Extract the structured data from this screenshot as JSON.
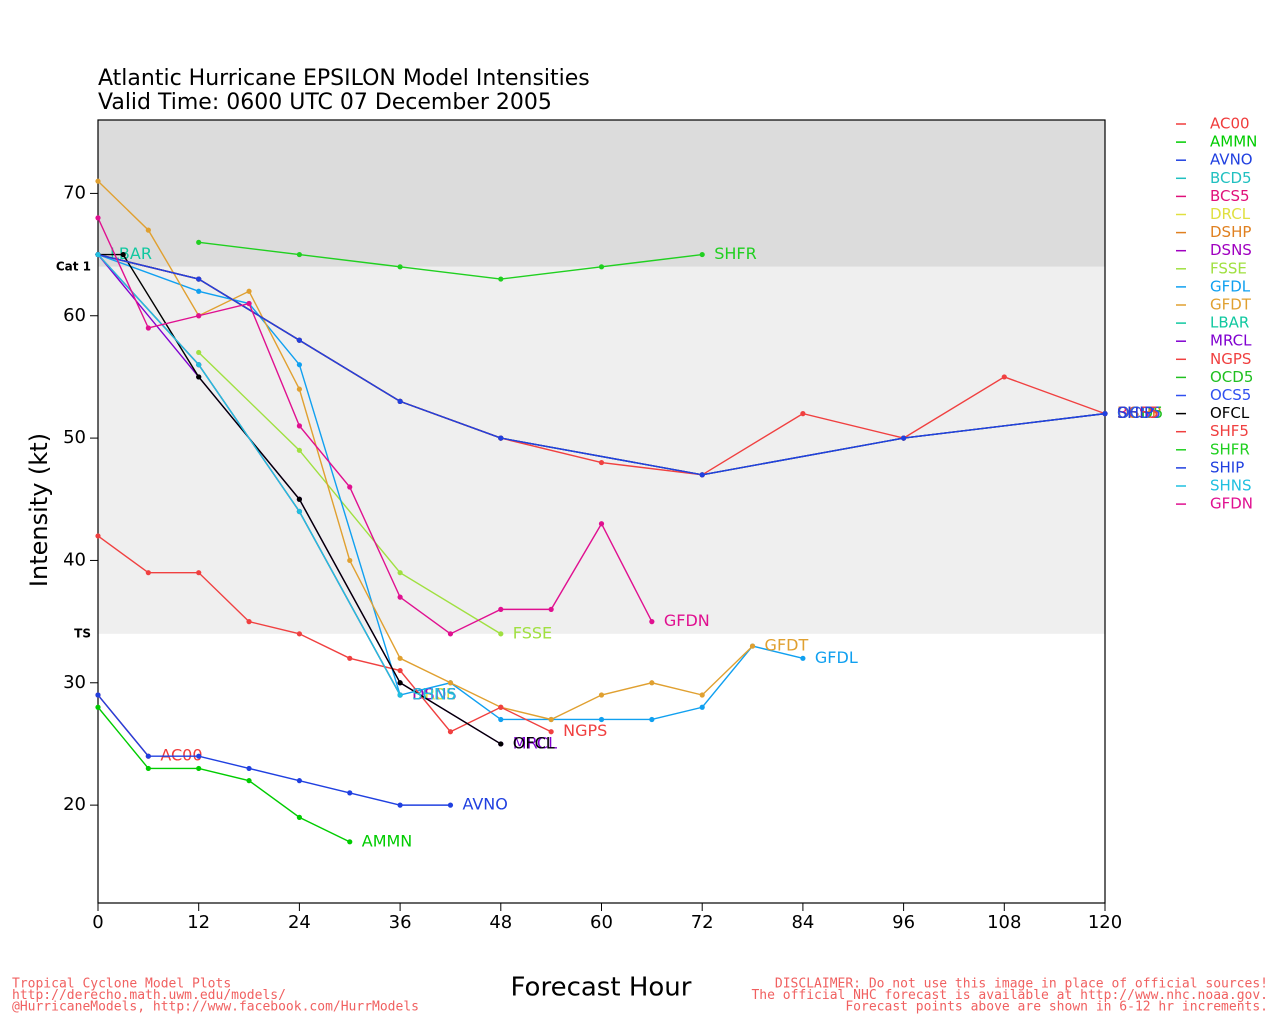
{
  "chart_data": {
    "type": "line",
    "title": [
      "Atlantic Hurricane EPSILON Model Intensities",
      "Valid Time: 0600 UTC 07 December 2005"
    ],
    "x_label": "Forecast Hour",
    "y_label": "Intensity (kt)",
    "xlim": [
      0,
      120
    ],
    "xticks": [
      0,
      12,
      24,
      36,
      48,
      60,
      72,
      84,
      96,
      108,
      120
    ],
    "ylim": [
      12,
      76
    ],
    "yticks": [
      20,
      30,
      40,
      50,
      60,
      70
    ],
    "bands": [
      {
        "label": "Cat 1",
        "value": 64,
        "color": "#dcdcdc"
      },
      {
        "label": "TS",
        "value": 34,
        "color": "#efefef"
      }
    ],
    "series": [
      {
        "name": "AC00",
        "color": "#f03c3c",
        "x": [
          0,
          6
        ],
        "values": [
          29,
          24
        ]
      },
      {
        "name": "AMMN",
        "color": "#00cc00",
        "x": [
          0,
          6,
          12,
          18,
          24,
          30
        ],
        "values": [
          28,
          23,
          23,
          22,
          19,
          17
        ]
      },
      {
        "name": "AVNO",
        "color": "#2040e0",
        "x": [
          0,
          6,
          12,
          18,
          24,
          30,
          36,
          42
        ],
        "values": [
          29,
          24,
          24,
          23,
          22,
          21,
          20,
          20
        ]
      },
      {
        "name": "BCD5",
        "color": "#20c0c0",
        "x": [
          0,
          12,
          24,
          36
        ],
        "values": [
          65,
          56,
          44,
          29
        ]
      },
      {
        "name": "BCS5",
        "color": "#e0107a",
        "x": [
          0,
          12,
          24,
          36,
          48,
          72,
          96,
          120
        ],
        "values": [
          65,
          63,
          58,
          53,
          50,
          47,
          50,
          52
        ]
      },
      {
        "name": "DRCL",
        "color": "#e0e040",
        "x": [
          0,
          12,
          24,
          36
        ],
        "values": [
          65,
          56,
          44,
          29
        ]
      },
      {
        "name": "DSHP",
        "color": "#e08020",
        "x": [
          0,
          12,
          24,
          36,
          48,
          72,
          96,
          120
        ],
        "values": [
          65,
          63,
          58,
          53,
          50,
          47,
          50,
          52
        ]
      },
      {
        "name": "DSNS",
        "color": "#a000c0",
        "x": [
          0,
          12,
          24,
          36
        ],
        "values": [
          65,
          56,
          44,
          29
        ]
      },
      {
        "name": "FSSE",
        "color": "#a0e040",
        "x": [
          12,
          24,
          36,
          48
        ],
        "values": [
          57,
          49,
          39,
          34
        ]
      },
      {
        "name": "GFDL",
        "color": "#10a0f0",
        "x": [
          0,
          12,
          18,
          24,
          36,
          42,
          48,
          54,
          60,
          66,
          72,
          78,
          84
        ],
        "values": [
          65,
          62,
          61,
          56,
          29,
          30,
          27,
          27,
          27,
          27,
          28,
          33,
          32
        ]
      },
      {
        "name": "GFDT",
        "color": "#e0a030",
        "x": [
          0,
          6,
          12,
          18,
          24,
          30,
          36,
          42,
          48,
          54,
          60,
          66,
          72,
          78
        ],
        "values": [
          71,
          67,
          60,
          62,
          54,
          40,
          32,
          30,
          28,
          27,
          29,
          30,
          29,
          33
        ]
      },
      {
        "name": "LBAR",
        "color": "#10c8a0",
        "x": [
          0
        ],
        "values": [
          65
        ]
      },
      {
        "name": "MRCL",
        "color": "#8000d0",
        "x": [
          0,
          12,
          24,
          36,
          48
        ],
        "values": [
          65,
          55,
          45,
          30,
          25
        ]
      },
      {
        "name": "NGPS",
        "color": "#f04040",
        "x": [
          0,
          6,
          12,
          18,
          24,
          30,
          36,
          42,
          48,
          54
        ],
        "values": [
          42,
          39,
          39,
          35,
          34,
          32,
          31,
          26,
          28,
          26
        ]
      },
      {
        "name": "OCD5",
        "color": "#20c020",
        "x": [
          0,
          12,
          24,
          36,
          48,
          72,
          96,
          120
        ],
        "values": [
          65,
          63,
          58,
          53,
          50,
          47,
          50,
          52
        ]
      },
      {
        "name": "OCS5",
        "color": "#3050f0",
        "x": [
          0,
          12,
          24,
          36,
          48,
          72,
          96,
          120
        ],
        "values": [
          65,
          63,
          58,
          53,
          50,
          47,
          50,
          52
        ]
      },
      {
        "name": "OFCL",
        "color": "#000000",
        "x": [
          0,
          3,
          12,
          24,
          36,
          48
        ],
        "values": [
          65,
          65,
          55,
          45,
          30,
          25
        ]
      },
      {
        "name": "SHF5",
        "color": "#f04040",
        "x": [
          0,
          12,
          24,
          36,
          48,
          60,
          72,
          84,
          96,
          108,
          120
        ],
        "values": [
          65,
          63,
          58,
          53,
          50,
          48,
          47,
          52,
          50,
          55,
          52
        ]
      },
      {
        "name": "SHFR",
        "color": "#20d020",
        "x": [
          12,
          24,
          36,
          48,
          60,
          72
        ],
        "values": [
          66,
          65,
          64,
          63,
          64,
          65
        ]
      },
      {
        "name": "SHIP",
        "color": "#2040e0",
        "x": [
          0,
          12,
          24,
          36,
          48,
          72,
          96,
          120
        ],
        "values": [
          65,
          63,
          58,
          53,
          50,
          47,
          50,
          52
        ]
      },
      {
        "name": "SHNS",
        "color": "#20c0e0",
        "x": [
          0,
          12,
          24,
          36
        ],
        "values": [
          65,
          56,
          44,
          29
        ]
      },
      {
        "name": "GFDN",
        "color": "#e01090",
        "x": [
          0,
          6,
          12,
          18,
          24,
          30,
          36,
          42,
          48,
          54,
          60,
          66
        ],
        "values": [
          68,
          59,
          60,
          61,
          51,
          46,
          37,
          34,
          36,
          36,
          43,
          35
        ]
      }
    ],
    "footer_left": [
      "Tropical Cyclone Model Plots",
      "http://derecho.math.uwm.edu/models/",
      "@HurricaneModels, http://www.facebook.com/HurrModels"
    ],
    "footer_right": [
      "DISCLAIMER: Do not use this image in place of official sources!",
      "The official NHC forecast is available at http://www.nhc.noaa.gov.",
      "Forecast points above are shown in 6-12 hr increments."
    ]
  }
}
